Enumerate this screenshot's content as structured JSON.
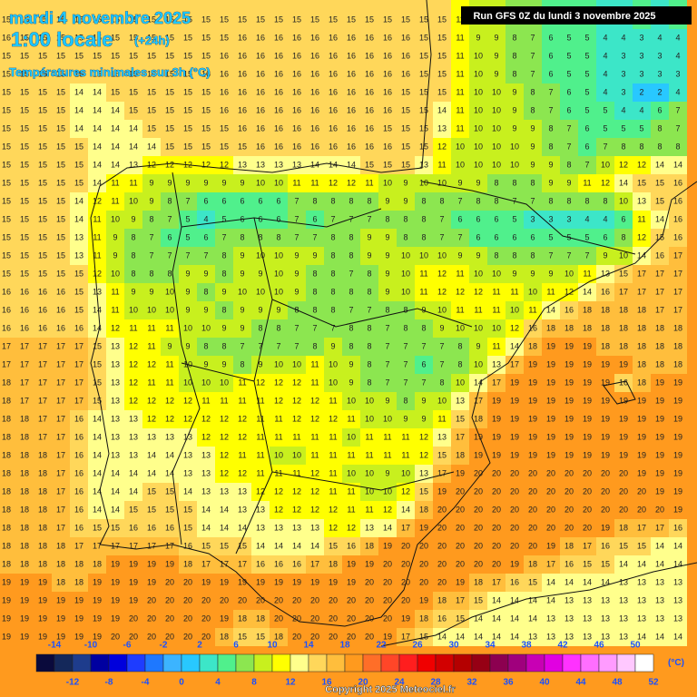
{
  "header": {
    "date": "mardi 4 novembre 2025",
    "time": "1:00 locale",
    "lead": "(+24h)",
    "subtitle": "Températures minimales sur 3h (°C)",
    "run": "Run GFS 0Z du lundi 3 novembre 2025"
  },
  "map": {
    "rows": [
      [
        15,
        15,
        15,
        15,
        15,
        15,
        15,
        15,
        15,
        15,
        15,
        15,
        15,
        15,
        15,
        15,
        15,
        15,
        15,
        15,
        15,
        15,
        15,
        15,
        15,
        11,
        9,
        9,
        8,
        7,
        6,
        6,
        5,
        4,
        4,
        5,
        4,
        5
      ],
      [
        16,
        15,
        15,
        15,
        15,
        15,
        15,
        15,
        15,
        15,
        15,
        15,
        15,
        16,
        16,
        16,
        16,
        16,
        16,
        16,
        16,
        16,
        16,
        15,
        15,
        11,
        9,
        9,
        8,
        7,
        6,
        5,
        5,
        4,
        4,
        3,
        4,
        4
      ],
      [
        15,
        15,
        15,
        15,
        15,
        15,
        15,
        15,
        15,
        15,
        15,
        15,
        16,
        16,
        16,
        16,
        16,
        16,
        16,
        16,
        16,
        16,
        16,
        15,
        15,
        11,
        10,
        9,
        8,
        7,
        6,
        5,
        5,
        4,
        3,
        3,
        3,
        4
      ],
      [
        15,
        15,
        15,
        15,
        15,
        15,
        15,
        15,
        15,
        15,
        15,
        16,
        16,
        16,
        16,
        16,
        16,
        16,
        16,
        16,
        16,
        16,
        16,
        15,
        15,
        11,
        10,
        9,
        8,
        7,
        6,
        5,
        5,
        4,
        3,
        3,
        3,
        3
      ],
      [
        15,
        15,
        15,
        15,
        14,
        14,
        15,
        15,
        15,
        15,
        15,
        15,
        16,
        16,
        16,
        16,
        16,
        16,
        16,
        16,
        16,
        16,
        15,
        15,
        15,
        11,
        10,
        10,
        9,
        8,
        7,
        6,
        5,
        4,
        3,
        2,
        2,
        4
      ],
      [
        15,
        15,
        15,
        15,
        14,
        14,
        14,
        15,
        15,
        15,
        15,
        15,
        16,
        16,
        16,
        16,
        16,
        16,
        16,
        16,
        16,
        16,
        15,
        15,
        14,
        11,
        10,
        10,
        9,
        8,
        7,
        6,
        5,
        5,
        4,
        4,
        6,
        7
      ],
      [
        15,
        15,
        15,
        15,
        14,
        14,
        14,
        14,
        15,
        15,
        15,
        15,
        15,
        16,
        16,
        16,
        16,
        16,
        16,
        16,
        16,
        15,
        15,
        15,
        13,
        11,
        10,
        10,
        9,
        9,
        8,
        7,
        6,
        5,
        5,
        5,
        8,
        7
      ],
      [
        15,
        15,
        15,
        15,
        15,
        14,
        14,
        14,
        14,
        15,
        15,
        15,
        15,
        15,
        16,
        16,
        16,
        16,
        16,
        16,
        16,
        16,
        15,
        15,
        12,
        10,
        10,
        10,
        10,
        9,
        8,
        7,
        6,
        7,
        8,
        8,
        8,
        8
      ],
      [
        15,
        15,
        15,
        15,
        15,
        14,
        14,
        13,
        12,
        12,
        12,
        12,
        12,
        13,
        13,
        13,
        13,
        14,
        14,
        14,
        15,
        15,
        15,
        13,
        11,
        10,
        10,
        10,
        10,
        9,
        9,
        8,
        7,
        10,
        12,
        12,
        14,
        14
      ],
      [
        15,
        15,
        15,
        15,
        15,
        14,
        11,
        11,
        9,
        9,
        9,
        9,
        9,
        9,
        10,
        10,
        11,
        11,
        12,
        12,
        11,
        10,
        9,
        10,
        10,
        9,
        9,
        8,
        8,
        8,
        9,
        9,
        11,
        12,
        14,
        15,
        15,
        16
      ],
      [
        15,
        15,
        15,
        15,
        14,
        12,
        11,
        10,
        9,
        8,
        7,
        6,
        6,
        6,
        6,
        6,
        7,
        8,
        8,
        8,
        8,
        9,
        9,
        8,
        8,
        7,
        8,
        8,
        7,
        7,
        8,
        8,
        8,
        8,
        10,
        13,
        15,
        16
      ],
      [
        15,
        15,
        15,
        15,
        14,
        11,
        10,
        9,
        8,
        7,
        5,
        4,
        5,
        6,
        6,
        6,
        7,
        6,
        7,
        7,
        7,
        8,
        8,
        8,
        7,
        6,
        6,
        6,
        5,
        3,
        3,
        3,
        4,
        4,
        6,
        11,
        14,
        16
      ],
      [
        15,
        15,
        15,
        15,
        13,
        11,
        9,
        8,
        7,
        6,
        5,
        6,
        7,
        8,
        8,
        8,
        7,
        7,
        8,
        8,
        9,
        9,
        8,
        8,
        7,
        7,
        6,
        6,
        6,
        6,
        5,
        5,
        5,
        6,
        8,
        12,
        15,
        16
      ],
      [
        15,
        15,
        15,
        15,
        13,
        11,
        9,
        8,
        7,
        7,
        7,
        7,
        8,
        9,
        10,
        10,
        9,
        9,
        8,
        8,
        9,
        9,
        10,
        10,
        10,
        9,
        9,
        8,
        8,
        8,
        7,
        7,
        7,
        9,
        10,
        14,
        16,
        17
      ],
      [
        15,
        15,
        15,
        15,
        15,
        12,
        10,
        8,
        8,
        8,
        9,
        9,
        8,
        9,
        9,
        10,
        9,
        8,
        8,
        7,
        8,
        9,
        10,
        11,
        12,
        11,
        10,
        10,
        9,
        9,
        9,
        10,
        11,
        13,
        15,
        17,
        17,
        17
      ],
      [
        16,
        16,
        16,
        16,
        15,
        13,
        11,
        9,
        9,
        10,
        9,
        8,
        9,
        10,
        10,
        10,
        9,
        8,
        8,
        8,
        8,
        9,
        10,
        11,
        12,
        12,
        12,
        11,
        11,
        10,
        11,
        12,
        14,
        16,
        17,
        17,
        17,
        17
      ],
      [
        16,
        16,
        16,
        16,
        15,
        14,
        11,
        10,
        10,
        10,
        9,
        9,
        8,
        9,
        9,
        9,
        8,
        8,
        8,
        7,
        7,
        8,
        8,
        9,
        10,
        11,
        11,
        11,
        10,
        11,
        14,
        16,
        18,
        18,
        18,
        18,
        17,
        17
      ],
      [
        16,
        16,
        16,
        16,
        16,
        14,
        12,
        11,
        11,
        11,
        10,
        10,
        9,
        9,
        8,
        8,
        7,
        7,
        7,
        8,
        8,
        7,
        8,
        8,
        9,
        10,
        10,
        10,
        12,
        16,
        18,
        18,
        18,
        18,
        18,
        18,
        18,
        18
      ],
      [
        17,
        17,
        17,
        17,
        17,
        15,
        13,
        12,
        11,
        9,
        9,
        8,
        8,
        7,
        7,
        7,
        7,
        8,
        9,
        8,
        8,
        7,
        7,
        7,
        7,
        8,
        9,
        11,
        14,
        18,
        19,
        19,
        19,
        18,
        18,
        18,
        18,
        18
      ],
      [
        17,
        17,
        17,
        17,
        17,
        15,
        13,
        12,
        12,
        11,
        10,
        9,
        9,
        8,
        9,
        10,
        10,
        11,
        10,
        9,
        8,
        7,
        7,
        6,
        7,
        8,
        10,
        13,
        17,
        19,
        19,
        19,
        19,
        19,
        19,
        18,
        18,
        18
      ],
      [
        18,
        17,
        17,
        17,
        17,
        15,
        13,
        12,
        11,
        11,
        10,
        10,
        10,
        11,
        12,
        12,
        12,
        11,
        10,
        9,
        8,
        7,
        7,
        7,
        8,
        10,
        14,
        17,
        19,
        19,
        19,
        19,
        19,
        19,
        16,
        18,
        19,
        19
      ],
      [
        18,
        17,
        17,
        17,
        17,
        15,
        13,
        12,
        12,
        12,
        12,
        11,
        11,
        11,
        11,
        12,
        12,
        12,
        11,
        10,
        10,
        9,
        8,
        9,
        10,
        13,
        17,
        19,
        19,
        19,
        19,
        19,
        19,
        19,
        19,
        19,
        19,
        19
      ],
      [
        18,
        18,
        17,
        17,
        16,
        14,
        13,
        13,
        12,
        12,
        12,
        12,
        12,
        12,
        11,
        11,
        12,
        12,
        12,
        11,
        10,
        10,
        9,
        9,
        11,
        15,
        18,
        19,
        19,
        19,
        19,
        19,
        19,
        19,
        19,
        19,
        19,
        19
      ],
      [
        18,
        18,
        17,
        17,
        16,
        14,
        13,
        13,
        13,
        13,
        13,
        12,
        12,
        12,
        11,
        11,
        11,
        11,
        11,
        10,
        11,
        11,
        11,
        12,
        13,
        17,
        19,
        19,
        19,
        19,
        19,
        19,
        19,
        19,
        19,
        19,
        19,
        19
      ],
      [
        18,
        18,
        18,
        17,
        16,
        14,
        13,
        13,
        14,
        14,
        13,
        13,
        12,
        11,
        11,
        10,
        10,
        11,
        11,
        11,
        11,
        11,
        11,
        12,
        15,
        18,
        19,
        19,
        19,
        19,
        19,
        19,
        19,
        19,
        19,
        19,
        19,
        19
      ],
      [
        18,
        18,
        18,
        17,
        16,
        14,
        14,
        14,
        14,
        14,
        13,
        13,
        12,
        12,
        11,
        11,
        11,
        12,
        11,
        10,
        10,
        9,
        10,
        13,
        17,
        19,
        20,
        20,
        20,
        20,
        20,
        20,
        20,
        20,
        20,
        19,
        19,
        19
      ],
      [
        18,
        18,
        18,
        17,
        16,
        14,
        14,
        14,
        15,
        15,
        14,
        13,
        13,
        13,
        12,
        12,
        12,
        12,
        11,
        11,
        10,
        10,
        12,
        15,
        19,
        20,
        20,
        20,
        20,
        20,
        20,
        20,
        20,
        20,
        20,
        20,
        19,
        19
      ],
      [
        18,
        18,
        18,
        17,
        16,
        14,
        14,
        15,
        15,
        15,
        15,
        14,
        14,
        13,
        13,
        12,
        12,
        12,
        12,
        11,
        11,
        12,
        14,
        18,
        20,
        20,
        20,
        20,
        20,
        20,
        20,
        20,
        20,
        20,
        20,
        20,
        20,
        19
      ],
      [
        18,
        18,
        18,
        17,
        16,
        15,
        15,
        16,
        16,
        16,
        15,
        14,
        14,
        14,
        13,
        13,
        13,
        13,
        12,
        12,
        13,
        14,
        17,
        19,
        20,
        20,
        20,
        20,
        20,
        20,
        20,
        20,
        20,
        19,
        18,
        17,
        17,
        16
      ],
      [
        18,
        18,
        18,
        18,
        17,
        17,
        17,
        17,
        17,
        17,
        16,
        15,
        15,
        15,
        14,
        14,
        14,
        14,
        15,
        16,
        18,
        19,
        20,
        20,
        20,
        20,
        20,
        20,
        20,
        20,
        19,
        18,
        17,
        16,
        15,
        15,
        14,
        14
      ],
      [
        18,
        18,
        18,
        18,
        18,
        18,
        19,
        19,
        19,
        19,
        18,
        17,
        17,
        17,
        16,
        16,
        16,
        17,
        18,
        19,
        19,
        20,
        20,
        20,
        20,
        20,
        20,
        20,
        19,
        18,
        17,
        16,
        15,
        15,
        14,
        14,
        14,
        14
      ],
      [
        19,
        19,
        19,
        18,
        18,
        19,
        19,
        19,
        19,
        20,
        20,
        19,
        19,
        19,
        19,
        19,
        19,
        19,
        19,
        19,
        20,
        20,
        20,
        20,
        20,
        19,
        18,
        17,
        16,
        15,
        14,
        14,
        14,
        14,
        13,
        13,
        13,
        13
      ],
      [
        19,
        19,
        19,
        19,
        19,
        19,
        19,
        19,
        20,
        20,
        20,
        20,
        20,
        20,
        20,
        20,
        20,
        20,
        20,
        20,
        20,
        20,
        20,
        19,
        18,
        17,
        15,
        14,
        14,
        14,
        14,
        13,
        13,
        13,
        13,
        13,
        13,
        13
      ],
      [
        19,
        19,
        19,
        19,
        19,
        19,
        19,
        20,
        20,
        20,
        20,
        20,
        19,
        18,
        18,
        20,
        20,
        20,
        20,
        20,
        20,
        20,
        19,
        18,
        16,
        15,
        14,
        14,
        14,
        14,
        13,
        13,
        13,
        13,
        13,
        13,
        13,
        13
      ],
      [
        19,
        19,
        19,
        19,
        19,
        19,
        20,
        20,
        20,
        20,
        20,
        20,
        18,
        15,
        15,
        18,
        20,
        20,
        20,
        20,
        20,
        19,
        17,
        15,
        14,
        14,
        14,
        14,
        14,
        13,
        13,
        13,
        13,
        13,
        13,
        14,
        14,
        14
      ]
    ]
  },
  "legend": {
    "ticks": [
      -14,
      -12,
      -10,
      -8,
      -6,
      -4,
      -2,
      0,
      2,
      4,
      6,
      8,
      10,
      12,
      14,
      16,
      18,
      20,
      22,
      24,
      26,
      28,
      30,
      32,
      34,
      36,
      38,
      40,
      42,
      44,
      46,
      48,
      50,
      52
    ],
    "colors": [
      "#0a0a3c",
      "#14285a",
      "#1e3c8c",
      "#0000a0",
      "#0000dc",
      "#1e3cff",
      "#1e78ff",
      "#3cb4ff",
      "#28c8ff",
      "#3ce6c8",
      "#50f08c",
      "#8ce650",
      "#c8f01e",
      "#ffff00",
      "#ffff8c",
      "#ffd75a",
      "#ffbe3c",
      "#ff9a1e",
      "#ff6e28",
      "#ff4628",
      "#ff1e1e",
      "#f00000",
      "#d20000",
      "#b40000",
      "#960014",
      "#8c0050",
      "#a0007d",
      "#c800b4",
      "#e100e1",
      "#ff32ff",
      "#ff6eff",
      "#ff9bff",
      "#ffc8ff",
      "#ffffff"
    ],
    "unit": "(°C)"
  },
  "footer": {
    "copyright": "Copyright 2025 Meteociel.fr"
  }
}
